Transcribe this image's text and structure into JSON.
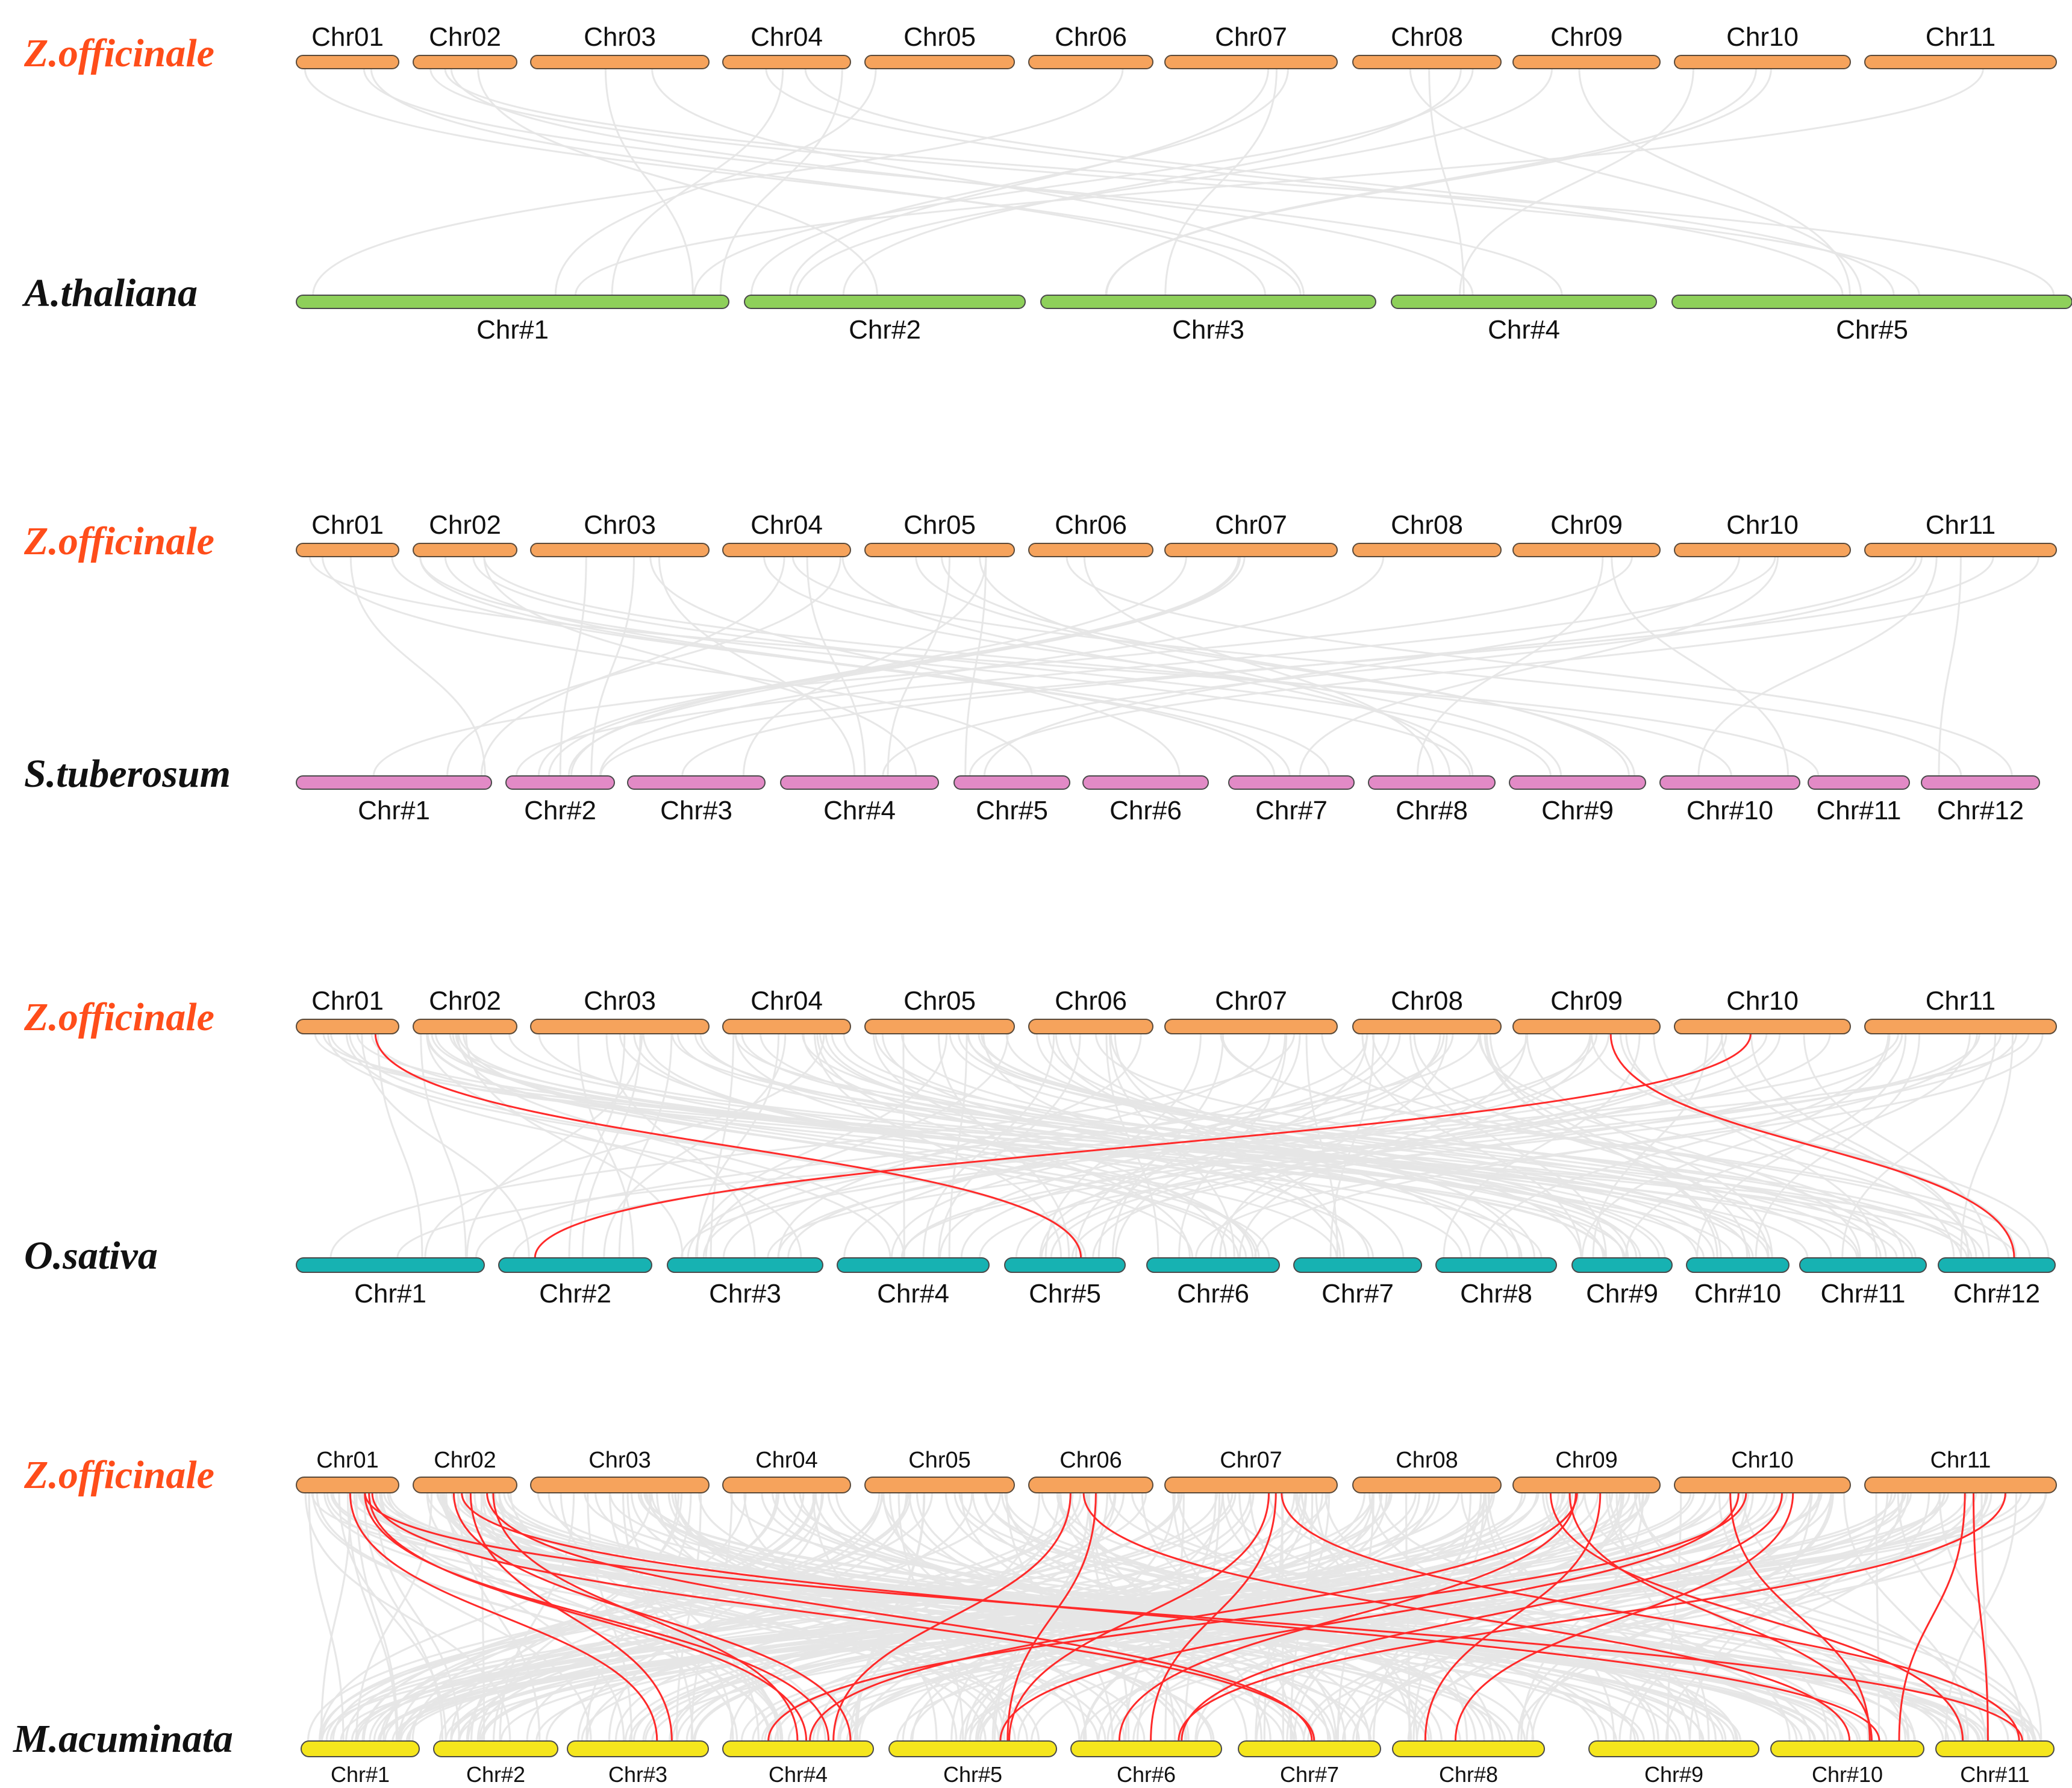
{
  "colors": {
    "zingiber": "#f6a35c",
    "arabidopsis": "#8ed05a",
    "solanum": "#e28ac6",
    "oryza": "#17b2b2",
    "musa": "#f5e61d",
    "background_link": "#e6e6e6",
    "highlight_link": "#ff2a2a",
    "species_highlight": "#ff4d1a",
    "species_text": "#111111"
  },
  "panels": [
    {
      "id": "a-thaliana",
      "top_species": "Z.officinale",
      "bottom_species": "A.thaliana",
      "top_chromosomes": [
        "Chr01",
        "Chr02",
        "Chr03",
        "Chr04",
        "Chr05",
        "Chr06",
        "Chr07",
        "Chr08",
        "Chr09",
        "Chr10",
        "Chr11"
      ],
      "bottom_chromosomes": [
        "Chr#1",
        "Chr#2",
        "Chr#3",
        "Chr#4",
        "Chr#5"
      ],
      "gray_links": 28,
      "highlighted_links": []
    },
    {
      "id": "s-tuberosum",
      "top_species": "Z.officinale",
      "bottom_species": "S.tuberosum",
      "top_chromosomes": [
        "Chr01",
        "Chr02",
        "Chr03",
        "Chr04",
        "Chr05",
        "Chr06",
        "Chr07",
        "Chr08",
        "Chr09",
        "Chr10",
        "Chr11"
      ],
      "bottom_chromosomes": [
        "Chr#1",
        "Chr#2",
        "Chr#3",
        "Chr#4",
        "Chr#5",
        "Chr#6",
        "Chr#7",
        "Chr#8",
        "Chr#9",
        "Chr#10",
        "Chr#11",
        "Chr#12"
      ],
      "gray_links": 45,
      "highlighted_links": []
    },
    {
      "id": "o-sativa",
      "top_species": "Z.officinale",
      "bottom_species": "O.sativa",
      "top_chromosomes": [
        "Chr01",
        "Chr02",
        "Chr03",
        "Chr04",
        "Chr05",
        "Chr06",
        "Chr07",
        "Chr08",
        "Chr09",
        "Chr10",
        "Chr11"
      ],
      "bottom_chromosomes": [
        "Chr#1",
        "Chr#2",
        "Chr#3",
        "Chr#4",
        "Chr#5",
        "Chr#6",
        "Chr#7",
        "Chr#8",
        "Chr#9",
        "Chr#10",
        "Chr#11",
        "Chr#12"
      ],
      "gray_links": 150,
      "highlighted_links": [
        {
          "from": "Chr01",
          "to": "Chr#5"
        },
        {
          "from": "Chr10",
          "to": "Chr#2"
        },
        {
          "from": "Chr09",
          "to": "Chr#12"
        }
      ]
    },
    {
      "id": "m-acuminata",
      "top_species": "Z.officinale",
      "bottom_species": "M.acuminata",
      "top_chromosomes": [
        "Chr01",
        "Chr02",
        "Chr03",
        "Chr04",
        "Chr05",
        "Chr06",
        "Chr07",
        "Chr08",
        "Chr09",
        "Chr10",
        "Chr11"
      ],
      "bottom_chromosomes": [
        "Chr#1",
        "Chr#2",
        "Chr#3",
        "Chr#4",
        "Chr#5",
        "Chr#6",
        "Chr#7",
        "Chr#8",
        "Chr#9",
        "Chr#10",
        "Chr#11"
      ],
      "gray_links": 320,
      "highlighted_links": [
        {
          "from": "Chr01",
          "to": "Chr#3"
        },
        {
          "from": "Chr01",
          "to": "Chr#4"
        },
        {
          "from": "Chr01",
          "to": "Chr#4"
        },
        {
          "from": "Chr01",
          "to": "Chr#7"
        },
        {
          "from": "Chr01",
          "to": "Chr#11"
        },
        {
          "from": "Chr02",
          "to": "Chr#3"
        },
        {
          "from": "Chr02",
          "to": "Chr#4"
        },
        {
          "from": "Chr02",
          "to": "Chr#4"
        },
        {
          "from": "Chr02",
          "to": "Chr#7"
        },
        {
          "from": "Chr02",
          "to": "Chr#10"
        },
        {
          "from": "Chr06",
          "to": "Chr#4"
        },
        {
          "from": "Chr06",
          "to": "Chr#5"
        },
        {
          "from": "Chr06",
          "to": "Chr#10"
        },
        {
          "from": "Chr07",
          "to": "Chr#5"
        },
        {
          "from": "Chr07",
          "to": "Chr#6"
        },
        {
          "from": "Chr07",
          "to": "Chr#11"
        },
        {
          "from": "Chr09",
          "to": "Chr#4"
        },
        {
          "from": "Chr09",
          "to": "Chr#6"
        },
        {
          "from": "Chr09",
          "to": "Chr#8"
        },
        {
          "from": "Chr09",
          "to": "Chr#10"
        },
        {
          "from": "Chr09",
          "to": "Chr#11"
        },
        {
          "from": "Chr10",
          "to": "Chr#4"
        },
        {
          "from": "Chr10",
          "to": "Chr#5"
        },
        {
          "from": "Chr10",
          "to": "Chr#6"
        },
        {
          "from": "Chr10",
          "to": "Chr#8"
        },
        {
          "from": "Chr10",
          "to": "Chr#10"
        },
        {
          "from": "Chr11",
          "to": "Chr#6"
        },
        {
          "from": "Chr11",
          "to": "Chr#10"
        },
        {
          "from": "Chr11",
          "to": "Chr#11"
        }
      ]
    }
  ]
}
